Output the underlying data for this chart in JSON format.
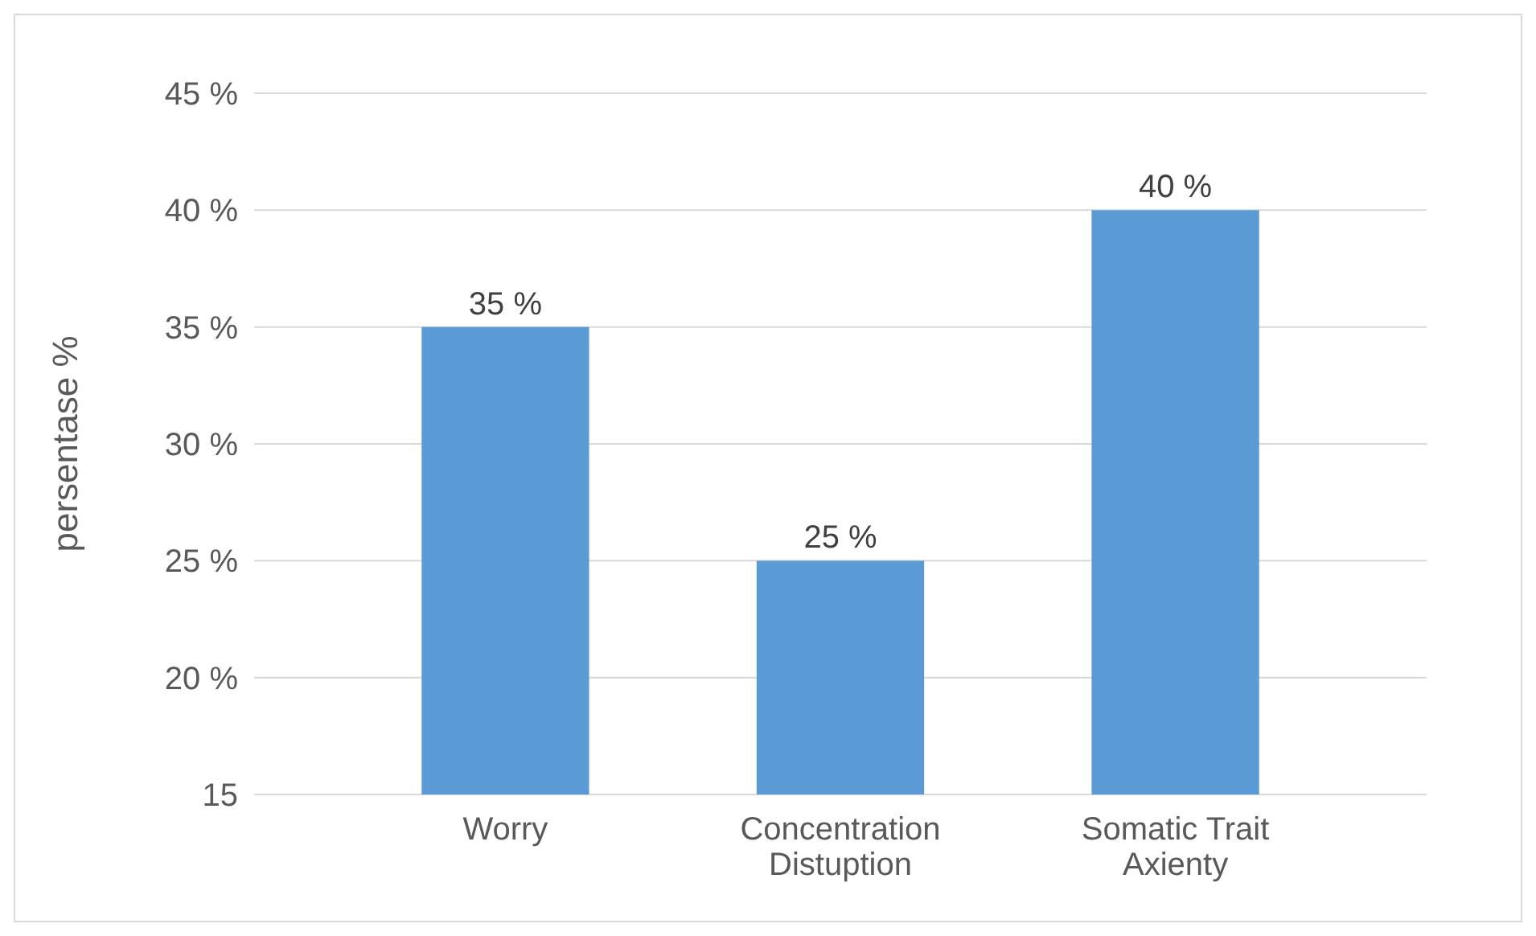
{
  "chart_data": {
    "type": "bar",
    "ylabel": "persentase %",
    "categories": [
      "Worry",
      "Concentration Distuption",
      "Somatic Trait Axienty"
    ],
    "values": [
      35,
      25,
      40
    ],
    "color": "#5b9bd5",
    "value_labels": [
      "35 %",
      "25 %",
      "40 %"
    ],
    "ylim": [
      15,
      45
    ],
    "yticks": [
      {
        "value": 15,
        "label": "15"
      },
      {
        "value": 20,
        "label": "20 %"
      },
      {
        "value": 25,
        "label": "25 %"
      },
      {
        "value": 30,
        "label": "30 %"
      },
      {
        "value": 35,
        "label": "35 %"
      },
      {
        "value": 40,
        "label": "40 %"
      },
      {
        "value": 45,
        "label": "45 %"
      }
    ],
    "grid": "y"
  }
}
